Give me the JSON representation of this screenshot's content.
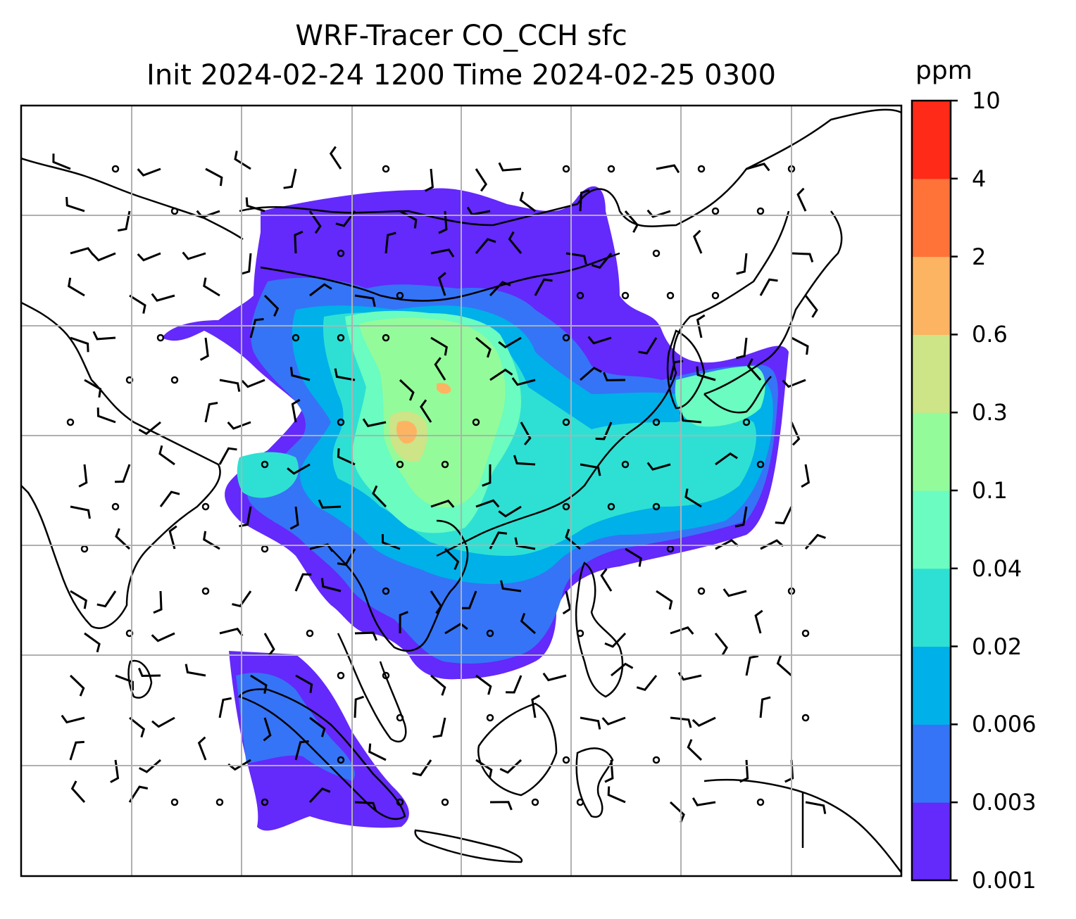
{
  "title": {
    "line1": "WRF-Tracer CO_CCH sfc",
    "line2": "Init 2024-02-24 1200 Time 2024-02-25 0300"
  },
  "colorbar": {
    "unit": "ppm",
    "ticks": [
      "0.001",
      "0.003",
      "0.006",
      "0.02",
      "0.04",
      "0.1",
      "0.3",
      "0.6",
      "2",
      "4",
      "10"
    ],
    "colors": [
      "#6429fb",
      "#3574f6",
      "#00b0e9",
      "#2ee0d3",
      "#6afcc0",
      "#94fb9a",
      "#cde487",
      "#fdb462",
      "#ff7339",
      "#ff2a17"
    ]
  },
  "map": {
    "region": "East / Southeast Asia",
    "gridlines": true,
    "coastline_color": "#000000",
    "grid_color": "#b0b0b0"
  }
}
